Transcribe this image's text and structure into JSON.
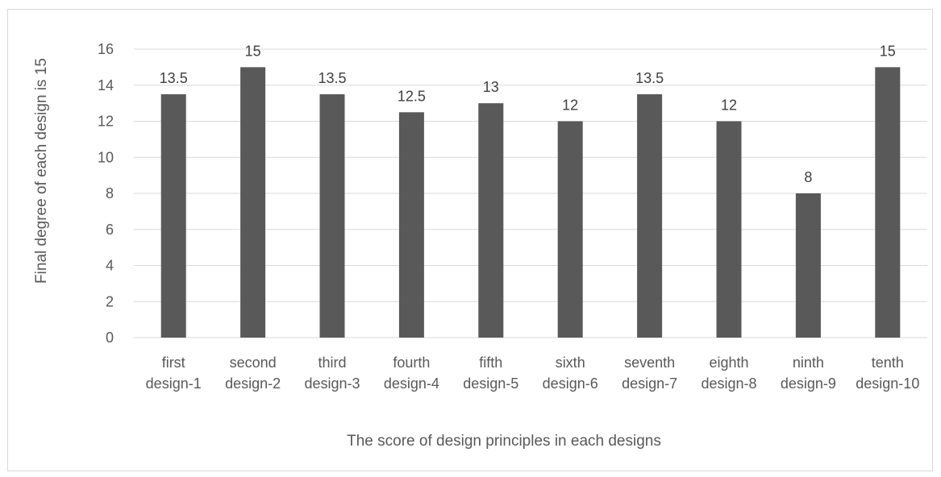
{
  "chart_data": {
    "type": "bar",
    "title": "",
    "xlabel": "The score of design principles in each designs",
    "ylabel": "Final degree of each design is 15",
    "categories": [
      [
        "first",
        "design-1"
      ],
      [
        "second",
        "design-2"
      ],
      [
        "third",
        "design-3"
      ],
      [
        "fourth",
        "design-4"
      ],
      [
        "fifth",
        "design-5"
      ],
      [
        "sixth",
        "design-6"
      ],
      [
        "seventh",
        "design-7"
      ],
      [
        "eighth",
        "design-8"
      ],
      [
        "ninth",
        "design-9"
      ],
      [
        "tenth",
        "design-10"
      ]
    ],
    "values": [
      13.5,
      15,
      13.5,
      12.5,
      13,
      12,
      13.5,
      12,
      8,
      15
    ],
    "data_labels": [
      "13.5",
      "15",
      "13.5",
      "12.5",
      "13",
      "12",
      "13.5",
      "12",
      "8",
      "15"
    ],
    "ylim": [
      0,
      16
    ],
    "yticks": [
      0,
      2,
      4,
      6,
      8,
      10,
      12,
      14,
      16
    ],
    "grid": true,
    "legend": "none",
    "bar_color": "#595959",
    "grid_color": "#d9d9d9"
  }
}
